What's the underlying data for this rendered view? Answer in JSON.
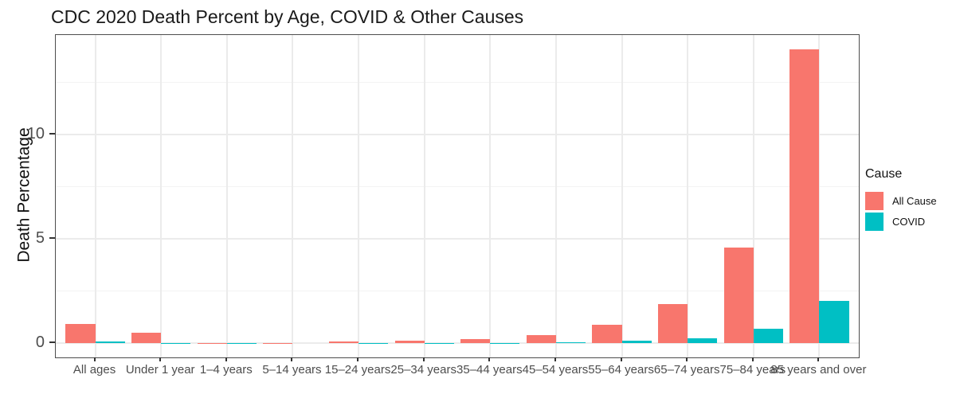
{
  "chart_data": {
    "type": "bar",
    "bar_layout": "dodge",
    "title": "CDC 2020 Death Percent by Age, COVID & Other Causes",
    "xlabel": "",
    "ylabel": "Death Percentage",
    "legend_title": "Cause",
    "legend_position": "right",
    "grid": true,
    "categories": [
      "All ages",
      "Under 1 year",
      "1–4 years",
      "5–14 years",
      "15–24 years",
      "25–34 years",
      "35–44 years",
      "45–54 years",
      "55–64 years",
      "65–74 years",
      "75–84 years",
      "85 years and over"
    ],
    "series": [
      {
        "name": "All Cause",
        "color": "#F8766D",
        "values": [
          0.95,
          0.5,
          0.02,
          0.02,
          0.1,
          0.15,
          0.2,
          0.4,
          0.9,
          1.9,
          4.6,
          14.1
        ]
      },
      {
        "name": "COVID",
        "color": "#00BFC4",
        "values": [
          0.1,
          0.005,
          0.003,
          0.002,
          0.01,
          0.02,
          0.02,
          0.07,
          0.12,
          0.23,
          0.7,
          2.05
        ]
      }
    ],
    "ylim": [
      -0.67,
      14.79
    ],
    "yticks": [
      0,
      5,
      10
    ],
    "yticks_minor": [
      2.5,
      7.5,
      12.5
    ]
  },
  "colors": {
    "all_cause": "#F8766D",
    "covid": "#00BFC4",
    "grid_major": "#EBEBEB",
    "grid_minor": "#F3F3F3",
    "panel_border": "#4D4D4D",
    "tick_mark": "#333333",
    "tick_text": "#4D4D4D",
    "title_text": "#1A1A1A"
  }
}
